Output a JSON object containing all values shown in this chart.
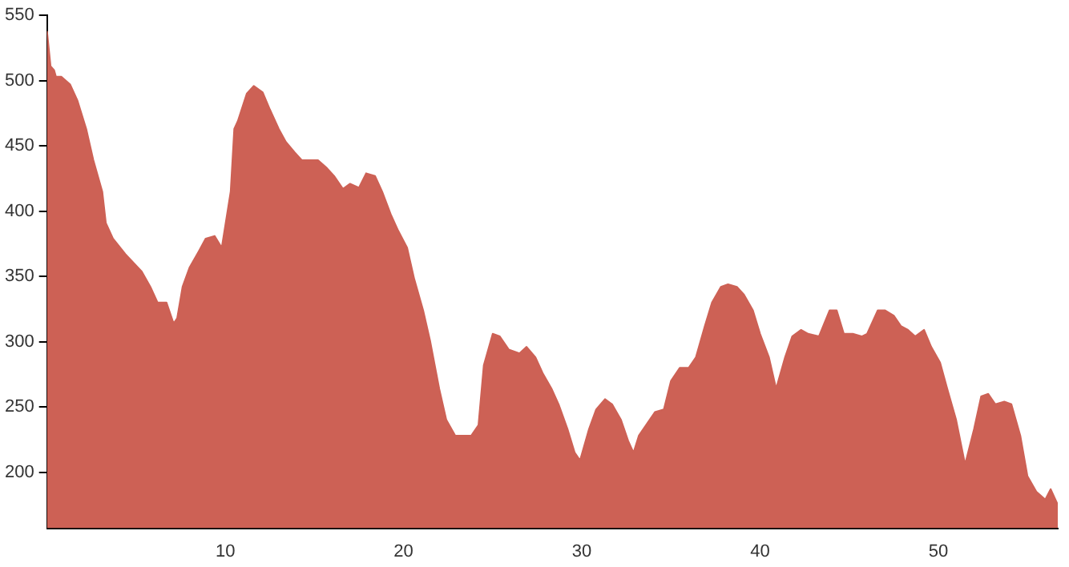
{
  "chart_data": {
    "type": "area",
    "x": [
      0,
      0.2,
      0.4,
      0.5,
      0.8,
      1.3,
      1.7,
      2.2,
      2.6,
      3.1,
      3.3,
      3.7,
      4.4,
      5.3,
      5.8,
      6.2,
      6.7,
      7.1,
      7.3,
      7.6,
      8,
      8.5,
      8.9,
      9.4,
      9.8,
      10.3,
      10.5,
      10.7,
      11.2,
      11.6,
      12.1,
      12.5,
      13,
      13.4,
      13.9,
      14.3,
      15.2,
      15.7,
      16.1,
      16.6,
      17,
      17.5,
      17.9,
      18.4,
      18.8,
      19.3,
      19.7,
      20.2,
      20.6,
      21.1,
      21.5,
      22,
      22.4,
      22.9,
      23.3,
      23.8,
      24.2,
      24.5,
      25,
      25.4,
      25.9,
      26.5,
      26.9,
      27.4,
      27.8,
      28.3,
      28.7,
      29.2,
      29.6,
      29.9,
      30.4,
      30.8,
      31.3,
      31.7,
      32.2,
      32.6,
      32.9,
      33.2,
      34.1,
      34.6,
      35,
      35.5,
      36,
      36.4,
      36.9,
      37.3,
      37.8,
      38.2,
      38.7,
      39.1,
      39.6,
      40,
      40.5,
      40.9,
      41.4,
      41.8,
      42.3,
      42.7,
      43.3,
      43.9,
      44.3,
      44.7,
      45.2,
      45.7,
      46,
      46.6,
      47,
      47.5,
      47.9,
      48.3,
      48.7,
      49.2,
      49.6,
      50.1,
      50.5,
      51,
      51.5,
      52,
      52.4,
      52.8,
      53.2,
      53.7,
      54.1,
      54.6,
      55,
      55.5,
      56,
      56.3,
      56.7
    ],
    "values": [
      538,
      511,
      508,
      503,
      503,
      497,
      485,
      463,
      439,
      415,
      391,
      379,
      367,
      354,
      342,
      330,
      330,
      314,
      318,
      342,
      357,
      369,
      379,
      381,
      372,
      415,
      463,
      469,
      490,
      496,
      491,
      478,
      463,
      453,
      445,
      439,
      439,
      433,
      427,
      417,
      421,
      418,
      429,
      427,
      415,
      397,
      385,
      372,
      348,
      324,
      300,
      264,
      240,
      228,
      228,
      228,
      236,
      282,
      306,
      304,
      294,
      291,
      296,
      288,
      276,
      264,
      252,
      233,
      215,
      209,
      233,
      248,
      256,
      252,
      240,
      224,
      215,
      228,
      246,
      248,
      270,
      280,
      280,
      288,
      312,
      330,
      342,
      344,
      342,
      336,
      324,
      306,
      288,
      264,
      288,
      304,
      309,
      306,
      304,
      324,
      324,
      306,
      306,
      304,
      306,
      324,
      324,
      320,
      312,
      309,
      304,
      309,
      296,
      284,
      264,
      240,
      206,
      233,
      258,
      260,
      252,
      254,
      252,
      228,
      197,
      185,
      179,
      187,
      175
    ],
    "color": "#cd6155",
    "xlim": [
      0,
      56.7
    ],
    "ylim": [
      157,
      550
    ],
    "xticks": [
      10,
      20,
      30,
      40,
      50
    ],
    "yticks": [
      200,
      250,
      300,
      350,
      400,
      450,
      500,
      550
    ],
    "grid": false,
    "legend": false
  }
}
